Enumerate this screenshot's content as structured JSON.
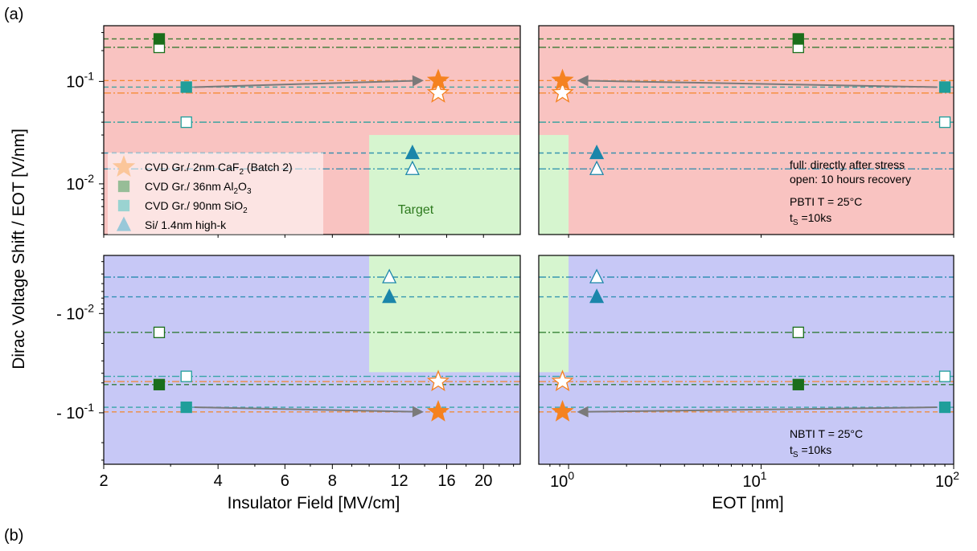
{
  "figure": {
    "label_a": "(a)",
    "label_b": "(b)",
    "ylabel": "Dirac Voltage Shift / EOT [V/nm]"
  },
  "colors": {
    "pbti_bg": "#f9c3c1",
    "nbti_bg": "#c7c8f6",
    "target": "#d6f5cf",
    "target_text": "#2d7a1e",
    "caf2": "#f58220",
    "al2o3": "#1a6e1a",
    "sio2": "#1f9e9a",
    "si_highk": "#1b86aa",
    "arrow": "#7a7a7a"
  },
  "left_x_ticks": [
    "2",
    "4",
    "6",
    "8",
    "12",
    "16",
    "20"
  ],
  "right_x_ticks": [
    {
      "base": "10",
      "exp": "0"
    },
    {
      "base": "10",
      "exp": "1"
    },
    {
      "base": "10",
      "exp": "2"
    }
  ],
  "top_y_ticks": [
    {
      "base": "10",
      "exp": "- 1"
    },
    {
      "base": "10",
      "exp": "- 2"
    }
  ],
  "bottom_y_ticks": [
    {
      "prefix": "- ",
      "base": "10",
      "exp": "- 2"
    },
    {
      "prefix": "- ",
      "base": "10",
      "exp": "- 1"
    }
  ],
  "legend": [
    {
      "marker": "star",
      "color_key": "caf2",
      "pre": "CVD Gr./ 2nm CaF",
      "sub": "2",
      "post": " (Batch 2)"
    },
    {
      "marker": "square",
      "color_key": "al2o3",
      "pre": "CVD Gr./ 36nm Al",
      "sub": "2",
      "mid": "O",
      "sub2": "3",
      "post": ""
    },
    {
      "marker": "square",
      "color_key": "sio2",
      "pre": "CVD Gr./ 90nm SiO",
      "sub": "2",
      "post": ""
    },
    {
      "marker": "triangle",
      "color_key": "si_highk",
      "pre": "Si/ 1.4nm high-k",
      "sub": "",
      "post": ""
    }
  ],
  "target_label": "Target",
  "annotations": {
    "stress_full": "full: directly after stress",
    "stress_open": "open: 10 hours recovery",
    "pbti_cond": "PBTI T = 25°C",
    "nbti_cond": "NBTI T = 25°C",
    "ts_pre": "t",
    "ts_sub": "S",
    "ts_post": " =10ks"
  },
  "chart_data": [
    {
      "type": "scatter",
      "panel": "PBTI (top)",
      "xlabel": "Insulator Field [MV/cm]",
      "xscale": "log",
      "xlim": [
        2,
        25
      ],
      "ylabel": "Dirac Voltage Shift / EOT [V/nm]",
      "yscale": "log",
      "ylim": [
        0.0032,
        0.35
      ],
      "series": [
        {
          "name": "CVD Gr./ 2nm CaF2 (Batch 2)",
          "x_field": 15.2,
          "eot": 0.93,
          "after_stress": 0.102,
          "after_recovery": 0.077
        },
        {
          "name": "CVD Gr./ 36nm Al2O3",
          "x_field": 2.8,
          "eot": 15.6,
          "after_stress": 0.26,
          "after_recovery": 0.215
        },
        {
          "name": "CVD Gr./ 90nm SiO2",
          "x_field": 3.3,
          "eot": 90,
          "after_stress": 0.088,
          "after_recovery": 0.04
        },
        {
          "name": "Si/ 1.4nm high-k",
          "x_field": 13.0,
          "eot": 1.4,
          "after_stress": 0.02,
          "after_recovery": 0.014
        }
      ],
      "target_region": {
        "x_min_field": 10,
        "eot_max": 1.0,
        "y_max": 0.03
      }
    },
    {
      "type": "scatter",
      "panel": "NBTI (bottom)",
      "xlabel": "EOT [nm]",
      "xscale": "log",
      "xlim": [
        0.7,
        100
      ],
      "yscale": "log",
      "ylim_abs": [
        0.0026,
        0.33
      ],
      "series": [
        {
          "name": "CVD Gr./ 2nm CaF2 (Batch 2)",
          "x_field": 15.2,
          "eot": 0.93,
          "after_stress": -0.098,
          "after_recovery": -0.0485
        },
        {
          "name": "CVD Gr./ 36nm Al2O3",
          "x_field": 2.8,
          "eot": 15.6,
          "after_stress": -0.052,
          "after_recovery": -0.0155
        },
        {
          "name": "CVD Gr./ 90nm SiO2",
          "x_field": 3.3,
          "eot": 90,
          "after_stress": -0.088,
          "after_recovery": -0.043
        },
        {
          "name": "Si/ 1.4nm high-k",
          "x_field": 11.3,
          "eot": 1.4,
          "after_stress": -0.0068,
          "after_recovery": -0.0043
        }
      ],
      "target_region": {
        "x_min_field": 10,
        "eot_max": 1.0,
        "y_max_abs": 0.039
      }
    }
  ]
}
